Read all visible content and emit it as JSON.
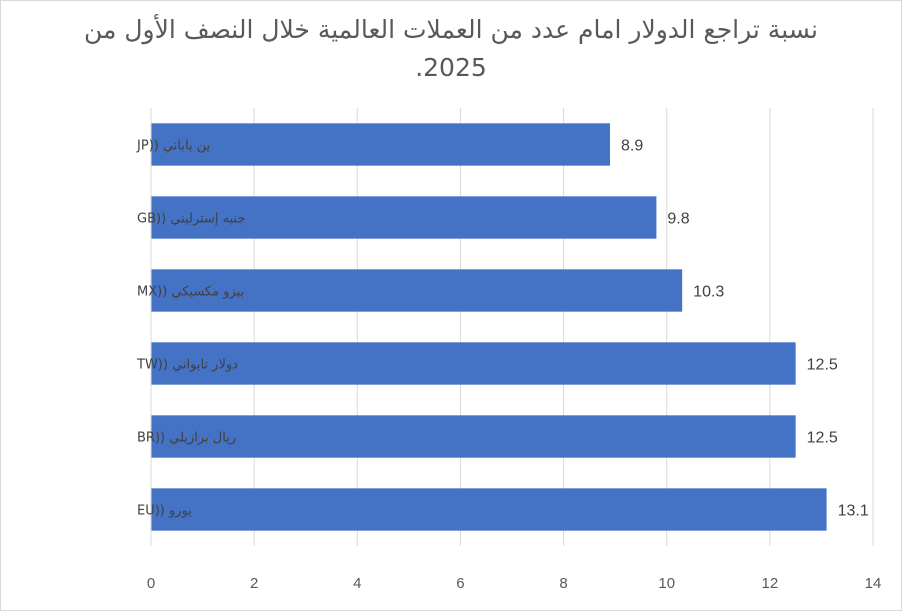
{
  "chart_data": {
    "type": "bar",
    "orientation": "horizontal",
    "title": "نسبة تراجع الدولار امام عدد من العملات العالمية خلال النصف الأول من 2025.",
    "categories": [
      "ين ياباني ((JP",
      "جنيه إسترليني ((GB",
      "بيزو مكسيكي ((MX",
      "دولار تايواني ((TW",
      "ريال برازيلي ((BR",
      "يورو ((EU"
    ],
    "values": [
      8.9,
      9.8,
      10.3,
      12.5,
      12.5,
      13.1
    ],
    "xlim": [
      0,
      14
    ],
    "xticks": [
      0,
      2,
      4,
      6,
      8,
      10,
      12,
      14
    ],
    "grid": true,
    "legend": "none",
    "bar_color": "#4472C4",
    "grid_color": "#d9d9d9"
  }
}
